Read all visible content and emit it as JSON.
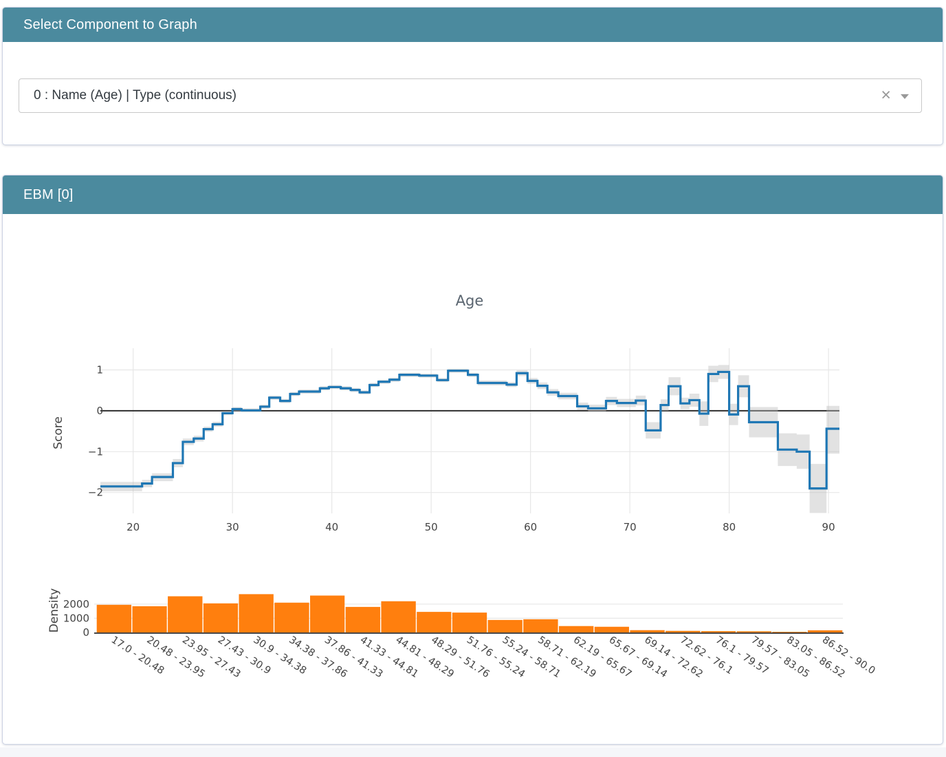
{
  "select_panel": {
    "title": "Select Component to Graph",
    "dropdown_value": "0 : Name (Age) | Type (continuous)",
    "clear_icon": "×"
  },
  "ebm_panel": {
    "title": "EBM [0]"
  },
  "colors": {
    "header_bg": "#4b8a9e",
    "line": "#1f77b4",
    "band": "#bbbbbb",
    "hist": "#ff7f0e",
    "grid": "#e7e7e7",
    "zero_line": "#2d2d2d",
    "tick_text": "#444444"
  },
  "chart_data": [
    {
      "type": "line",
      "title": "Age",
      "ylabel": "Score",
      "line_shape": "step-hv",
      "legend": "none",
      "grid": true,
      "x_ticks": [
        20,
        30,
        40,
        50,
        60,
        70,
        80,
        90
      ],
      "y_ticks": [
        1,
        0,
        -1,
        -2
      ],
      "xlim": [
        16.7,
        91.1
      ],
      "ylim": [
        -2.51,
        1.53
      ],
      "series": [
        {
          "name": "score",
          "points": [
            [
              16.7,
              -1.85
            ],
            [
              20.9,
              -1.78
            ],
            [
              21.9,
              -1.62
            ],
            [
              24.0,
              -1.28
            ],
            [
              25.0,
              -0.76
            ],
            [
              26.1,
              -0.68
            ],
            [
              27.1,
              -0.45
            ],
            [
              28.0,
              -0.33
            ],
            [
              29.0,
              -0.06
            ],
            [
              30.0,
              0.04
            ],
            [
              30.9,
              0.01
            ],
            [
              32.8,
              0.1
            ],
            [
              33.7,
              0.32
            ],
            [
              34.8,
              0.24
            ],
            [
              35.8,
              0.41
            ],
            [
              36.7,
              0.47
            ],
            [
              38.8,
              0.55
            ],
            [
              39.7,
              0.58
            ],
            [
              40.9,
              0.55
            ],
            [
              41.9,
              0.51
            ],
            [
              42.8,
              0.45
            ],
            [
              43.8,
              0.63
            ],
            [
              44.7,
              0.71
            ],
            [
              45.8,
              0.76
            ],
            [
              46.8,
              0.88
            ],
            [
              48.8,
              0.86
            ],
            [
              50.6,
              0.75
            ],
            [
              51.7,
              0.98
            ],
            [
              53.7,
              0.88
            ],
            [
              54.7,
              0.68
            ],
            [
              57.6,
              0.64
            ],
            [
              58.6,
              0.92
            ],
            [
              59.7,
              0.73
            ],
            [
              60.7,
              0.61
            ],
            [
              61.7,
              0.45
            ],
            [
              62.8,
              0.36
            ],
            [
              64.7,
              0.11
            ],
            [
              65.8,
              0.06
            ],
            [
              67.6,
              0.24
            ],
            [
              68.7,
              0.19
            ],
            [
              70.6,
              0.25
            ],
            [
              71.6,
              -0.48
            ],
            [
              73.1,
              0.14
            ],
            [
              73.9,
              0.6
            ],
            [
              75.1,
              0.18
            ],
            [
              76.0,
              0.26
            ],
            [
              77.0,
              -0.07
            ],
            [
              77.9,
              0.9
            ],
            [
              78.9,
              0.95
            ],
            [
              80.0,
              -0.09
            ],
            [
              80.9,
              0.6
            ],
            [
              82.0,
              -0.28
            ],
            [
              84.9,
              -0.95
            ],
            [
              86.8,
              -1.0
            ],
            [
              88.1,
              -1.9
            ],
            [
              89.8,
              -0.44
            ],
            [
              91.1,
              -0.44
            ]
          ]
        }
      ],
      "band": [
        [
          16.7,
          -1.97,
          -1.74
        ],
        [
          20.9,
          -1.87,
          -1.69
        ],
        [
          21.9,
          -1.72,
          -1.53
        ],
        [
          24.0,
          -1.38,
          -1.18
        ],
        [
          25.0,
          -0.84,
          -0.68
        ],
        [
          26.1,
          -0.75,
          -0.61
        ],
        [
          27.1,
          -0.51,
          -0.39
        ],
        [
          28.0,
          -0.39,
          -0.27
        ],
        [
          29.0,
          -0.11,
          -0.01
        ],
        [
          30.0,
          -0.01,
          0.09
        ],
        [
          30.9,
          -0.04,
          0.06
        ],
        [
          32.8,
          0.05,
          0.15
        ],
        [
          33.7,
          0.27,
          0.37
        ],
        [
          34.8,
          0.19,
          0.29
        ],
        [
          35.8,
          0.36,
          0.46
        ],
        [
          36.7,
          0.42,
          0.52
        ],
        [
          38.8,
          0.5,
          0.6
        ],
        [
          39.7,
          0.53,
          0.63
        ],
        [
          40.9,
          0.5,
          0.6
        ],
        [
          41.9,
          0.46,
          0.56
        ],
        [
          42.8,
          0.4,
          0.5
        ],
        [
          43.8,
          0.58,
          0.68
        ],
        [
          44.7,
          0.66,
          0.76
        ],
        [
          45.8,
          0.71,
          0.81
        ],
        [
          46.8,
          0.83,
          0.93
        ],
        [
          48.8,
          0.81,
          0.91
        ],
        [
          50.6,
          0.7,
          0.8
        ],
        [
          51.7,
          0.93,
          1.03
        ],
        [
          53.7,
          0.83,
          0.93
        ],
        [
          54.7,
          0.62,
          0.74
        ],
        [
          57.6,
          0.58,
          0.7
        ],
        [
          58.6,
          0.85,
          0.99
        ],
        [
          59.7,
          0.66,
          0.8
        ],
        [
          60.7,
          0.53,
          0.69
        ],
        [
          61.7,
          0.37,
          0.53
        ],
        [
          62.8,
          0.28,
          0.44
        ],
        [
          64.7,
          0.02,
          0.2
        ],
        [
          65.8,
          -0.03,
          0.15
        ],
        [
          67.6,
          0.14,
          0.34
        ],
        [
          68.7,
          0.09,
          0.29
        ],
        [
          70.6,
          0.13,
          0.37
        ],
        [
          71.6,
          -0.68,
          -0.28
        ],
        [
          73.1,
          0.0,
          0.28
        ],
        [
          73.9,
          0.38,
          0.82
        ],
        [
          75.1,
          0.04,
          0.32
        ],
        [
          76.0,
          0.1,
          0.42
        ],
        [
          77.0,
          -0.37,
          0.23
        ],
        [
          77.9,
          0.7,
          1.1
        ],
        [
          78.9,
          0.78,
          1.12
        ],
        [
          80.0,
          -0.35,
          0.17
        ],
        [
          80.9,
          0.33,
          0.87
        ],
        [
          82.0,
          -0.65,
          0.09
        ],
        [
          84.9,
          -1.35,
          -0.55
        ],
        [
          86.8,
          -1.42,
          -0.58
        ],
        [
          88.1,
          -2.5,
          -1.3
        ],
        [
          89.8,
          -1.05,
          0.12
        ],
        [
          91.1,
          -1.05,
          0.12
        ]
      ]
    },
    {
      "type": "bar",
      "ylabel": "Density",
      "y_ticks": [
        0,
        1000,
        2000
      ],
      "ylim": [
        0,
        3300
      ],
      "bin_edges": [
        17.0,
        20.48,
        23.95,
        27.43,
        30.9,
        34.38,
        37.86,
        41.33,
        44.81,
        48.29,
        51.76,
        55.24,
        58.71,
        62.19,
        65.67,
        69.14,
        72.62,
        76.1,
        79.57,
        83.05,
        86.52,
        90.0
      ],
      "categories": [
        "17.0 - 20.48",
        "20.48 - 23.95",
        "23.95 - 27.43",
        "27.43 - 30.9",
        "30.9 - 34.38",
        "34.38 - 37.86",
        "37.86 - 41.33",
        "41.33 - 44.81",
        "44.81 - 48.29",
        "48.29 - 51.76",
        "51.76 - 55.24",
        "55.24 - 58.71",
        "58.71 - 62.19",
        "62.19 - 65.67",
        "65.67 - 69.14",
        "69.14 - 72.62",
        "72.62 - 76.1",
        "76.1 - 79.57",
        "79.57 - 83.05",
        "83.05 - 86.52",
        "86.52 - 90.0"
      ],
      "values": [
        1950,
        1850,
        2550,
        2050,
        2700,
        2100,
        2600,
        1800,
        2200,
        1450,
        1400,
        880,
        930,
        450,
        400,
        160,
        110,
        90,
        80,
        40,
        150
      ]
    }
  ]
}
